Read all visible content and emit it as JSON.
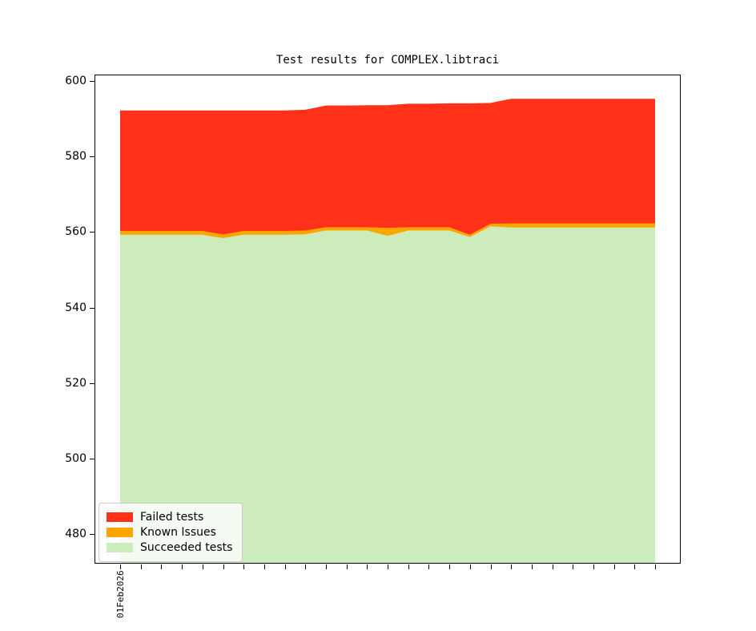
{
  "figure": {
    "background_color": "#ffffff",
    "title": "Test results for COMPLEX.libtraci"
  },
  "chart_data": {
    "type": "area",
    "stacked": true,
    "title": "Test results for COMPLEX.libtraci",
    "grid": false,
    "x_first_tick_label": "01Feb2026",
    "n_points": 27,
    "y_ticks": [
      600,
      580,
      560,
      540,
      520,
      500,
      480
    ],
    "ylim": [
      472.4,
      601.5
    ],
    "legend_position": "lower left",
    "series": [
      {
        "name": "Succeeded tests",
        "color": "#ccecbc",
        "role": "base-level",
        "values": [
          559.3,
          559.3,
          559.3,
          559.3,
          559.3,
          558.4,
          559.3,
          559.3,
          559.3,
          559.4,
          560.4,
          560.4,
          560.4,
          559.0,
          560.4,
          560.4,
          560.4,
          558.7,
          561.5,
          561.2,
          561.2,
          561.2,
          561.2,
          561.2,
          561.2,
          561.2,
          561.2
        ]
      },
      {
        "name": "Known Issues",
        "color": "#ffa500",
        "role": "thickness",
        "values": [
          1.0,
          1.0,
          1.0,
          1.0,
          1.0,
          1.0,
          1.0,
          1.0,
          1.0,
          1.0,
          0.9,
          0.9,
          0.9,
          2.1,
          0.9,
          0.9,
          0.9,
          0.6,
          0.7,
          1.1,
          1.1,
          1.1,
          1.1,
          1.1,
          1.1,
          1.1,
          1.1
        ]
      },
      {
        "name": "Failed tests",
        "color": "#ff3118",
        "role": "thickness",
        "values": [
          31.9,
          31.9,
          31.9,
          31.9,
          31.9,
          32.8,
          31.9,
          31.9,
          31.9,
          32.0,
          32.2,
          32.2,
          32.3,
          32.5,
          32.7,
          32.7,
          32.8,
          34.8,
          32.0,
          33.0,
          33.0,
          33.0,
          33.0,
          33.0,
          33.0,
          33.0,
          33.0
        ]
      }
    ],
    "totals": [
      592.2,
      592.2,
      592.2,
      592.2,
      592.2,
      592.2,
      592.2,
      592.2,
      592.2,
      592.4,
      593.5,
      593.5,
      593.6,
      593.6,
      594.0,
      594.0,
      594.1,
      594.1,
      594.2,
      595.3,
      595.3,
      595.3,
      595.3,
      595.3,
      595.3,
      595.3,
      595.3
    ]
  },
  "legend": {
    "entries": [
      {
        "label": "Failed tests",
        "color": "#ff3118"
      },
      {
        "label": "Known Issues",
        "color": "#ffa500"
      },
      {
        "label": "Succeeded tests",
        "color": "#ccecbc"
      }
    ]
  }
}
